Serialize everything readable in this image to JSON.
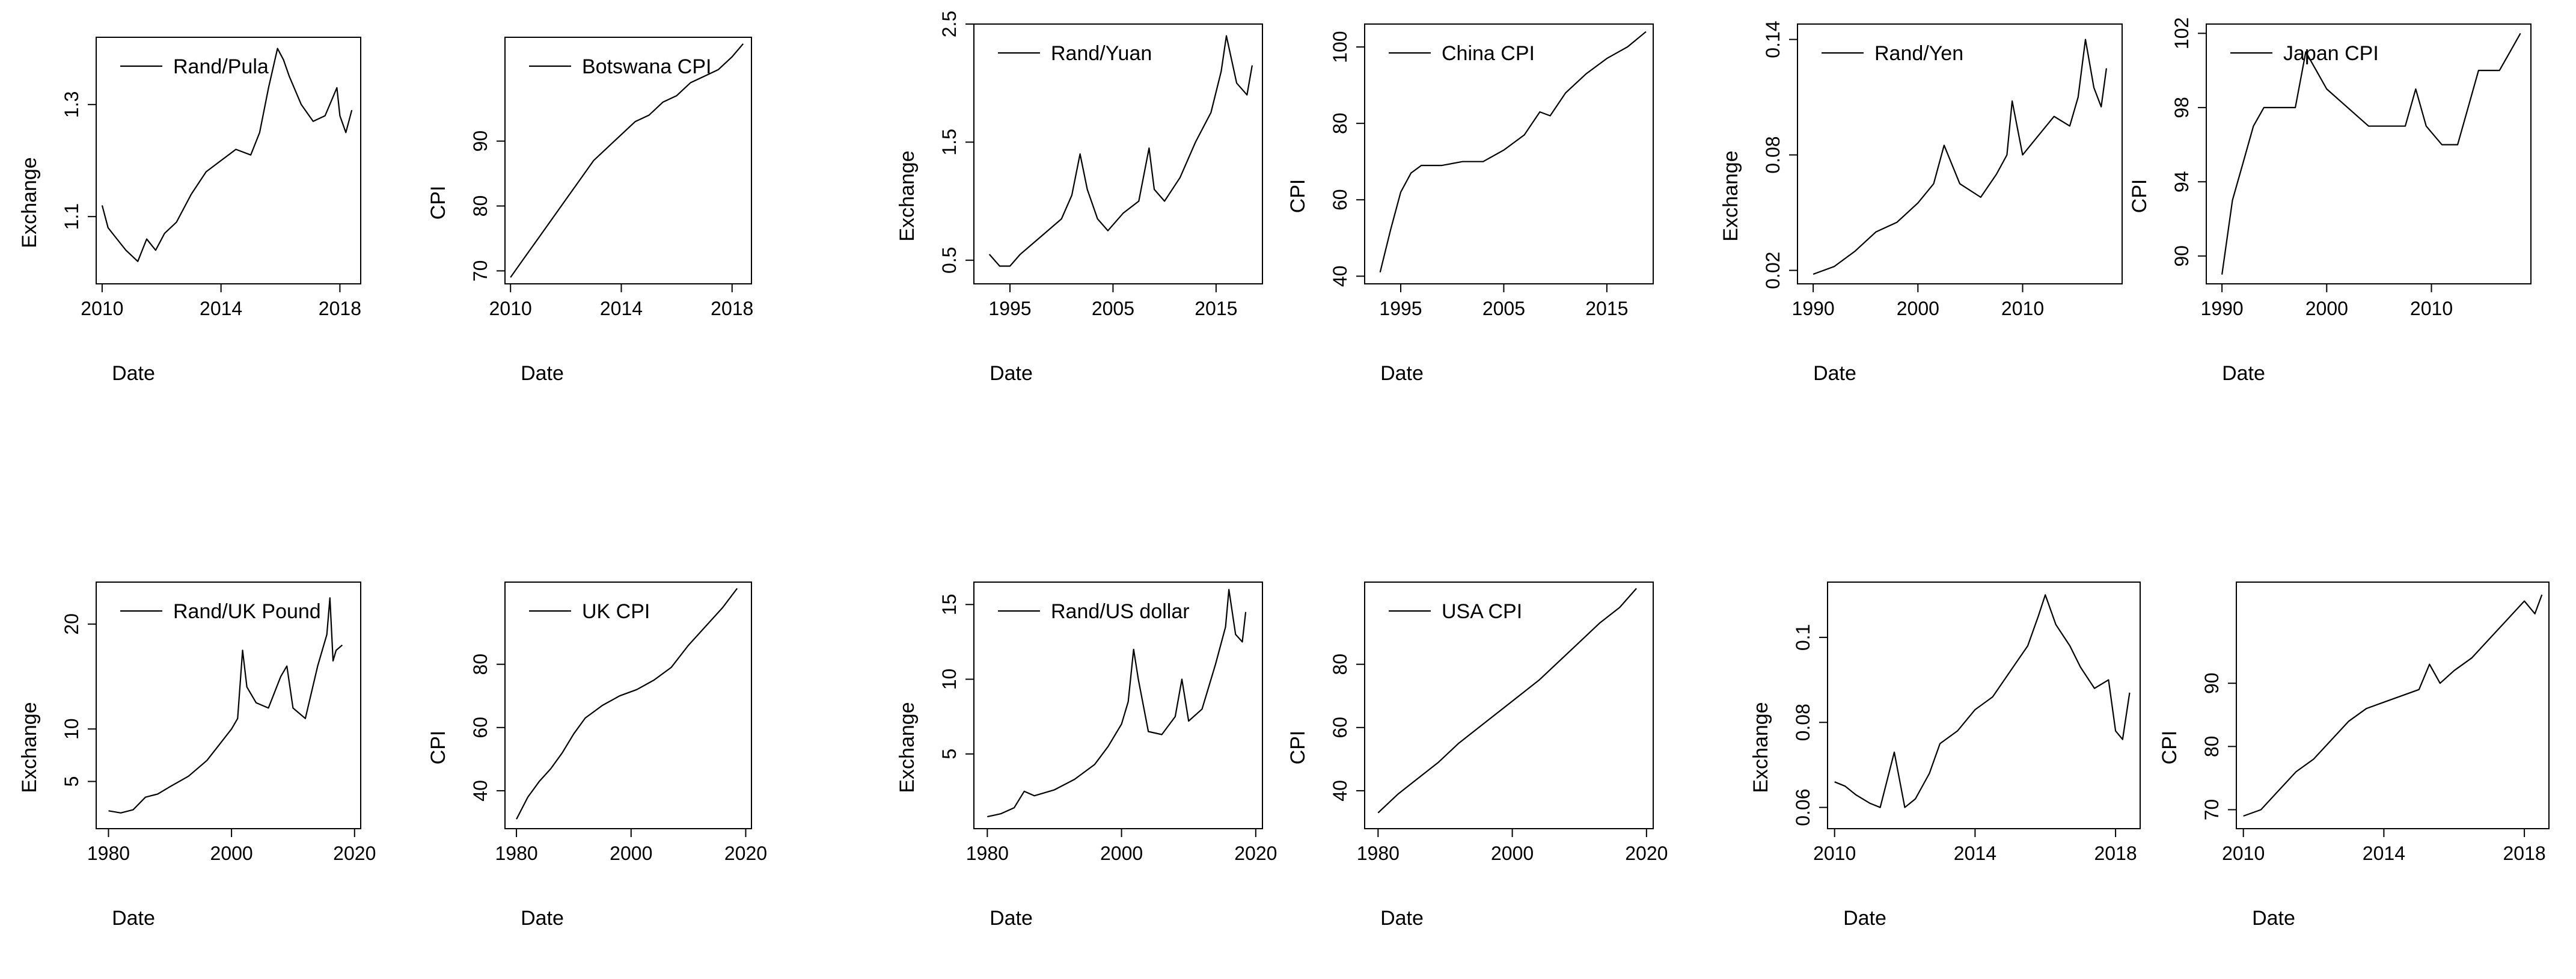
{
  "chart_data": [
    {
      "type": "line",
      "id": "rand-pula",
      "xlabel": "Date",
      "ylabel": "Exchange",
      "legend": "Rand/Pula",
      "legend_position": "top-left",
      "x_ticks": [
        2010,
        2014,
        2018
      ],
      "y_ticks": [
        1.1,
        1.3
      ],
      "xlim": [
        2009.8,
        2018.7
      ],
      "ylim": [
        0.98,
        1.42
      ],
      "series": [
        {
          "name": "Rand/Pula",
          "x": [
            2010.0,
            2010.2,
            2010.5,
            2010.8,
            2011.2,
            2011.5,
            2011.8,
            2012.1,
            2012.5,
            2013.0,
            2013.5,
            2014.0,
            2014.5,
            2015.0,
            2015.3,
            2015.6,
            2015.9,
            2016.1,
            2016.3,
            2016.7,
            2017.1,
            2017.5,
            2017.9,
            2018.0,
            2018.2,
            2018.4
          ],
          "values": [
            1.12,
            1.08,
            1.06,
            1.04,
            1.02,
            1.06,
            1.04,
            1.07,
            1.09,
            1.14,
            1.18,
            1.2,
            1.22,
            1.21,
            1.25,
            1.33,
            1.4,
            1.38,
            1.35,
            1.3,
            1.27,
            1.28,
            1.33,
            1.28,
            1.25,
            1.29
          ]
        }
      ]
    },
    {
      "type": "line",
      "id": "botswana-cpi",
      "xlabel": "Date",
      "ylabel": "CPI",
      "legend": "Botswana CPI",
      "legend_position": "top-left",
      "x_ticks": [
        2010,
        2014,
        2018
      ],
      "y_ticks": [
        70,
        80,
        90
      ],
      "xlim": [
        2009.8,
        2018.7
      ],
      "ylim": [
        68,
        106
      ],
      "series": [
        {
          "name": "Botswana CPI",
          "x": [
            2010.0,
            2010.5,
            2011.0,
            2011.5,
            2012.0,
            2012.5,
            2013.0,
            2013.5,
            2014.0,
            2014.5,
            2015.0,
            2015.5,
            2016.0,
            2016.5,
            2017.0,
            2017.5,
            2018.0,
            2018.4
          ],
          "values": [
            69,
            72,
            75,
            78,
            81,
            84,
            87,
            89,
            91,
            93,
            94,
            96,
            97,
            99,
            100,
            101,
            103,
            105
          ]
        }
      ]
    },
    {
      "type": "line",
      "id": "rand-yuan",
      "xlabel": "Date",
      "ylabel": "Exchange",
      "legend": "Rand/Yuan",
      "legend_position": "top-left",
      "x_ticks": [
        1995,
        2005,
        2015
      ],
      "y_ticks": [
        0.5,
        1.5,
        2.5
      ],
      "xlim": [
        1991.5,
        2019.5
      ],
      "ylim": [
        0.3,
        2.5
      ],
      "series": [
        {
          "name": "Rand/Yuan",
          "x": [
            1993.0,
            1994.0,
            1995.0,
            1996.0,
            1998.0,
            2000.0,
            2001.0,
            2001.8,
            2002.5,
            2003.5,
            2004.5,
            2006.0,
            2007.5,
            2008.5,
            2009.0,
            2010.0,
            2011.5,
            2013.0,
            2014.5,
            2015.5,
            2016.0,
            2017.0,
            2018.0,
            2018.5
          ],
          "values": [
            0.55,
            0.45,
            0.45,
            0.55,
            0.7,
            0.85,
            1.05,
            1.4,
            1.1,
            0.85,
            0.75,
            0.9,
            1.0,
            1.45,
            1.1,
            1.0,
            1.2,
            1.5,
            1.75,
            2.1,
            2.4,
            2.0,
            1.9,
            2.15
          ]
        }
      ]
    },
    {
      "type": "line",
      "id": "china-cpi",
      "xlabel": "Date",
      "ylabel": "CPI",
      "legend": "China CPI",
      "legend_position": "top-left",
      "x_ticks": [
        1995,
        2005,
        2015
      ],
      "y_ticks": [
        40,
        60,
        80,
        100
      ],
      "xlim": [
        1991.5,
        2019.5
      ],
      "ylim": [
        38,
        106
      ],
      "series": [
        {
          "name": "China CPI",
          "x": [
            1993.0,
            1994.0,
            1995.0,
            1996.0,
            1997.0,
            1999.0,
            2001.0,
            2003.0,
            2005.0,
            2007.0,
            2008.5,
            2009.5,
            2011.0,
            2013.0,
            2015.0,
            2017.0,
            2018.8
          ],
          "values": [
            41,
            52,
            62,
            67,
            69,
            69,
            70,
            70,
            73,
            77,
            83,
            82,
            88,
            93,
            97,
            100,
            104
          ]
        }
      ]
    },
    {
      "type": "line",
      "id": "rand-yen",
      "xlabel": "Date",
      "ylabel": "Exchange",
      "legend": "Rand/Yen",
      "legend_position": "top-left",
      "x_ticks": [
        1990,
        2000,
        2010
      ],
      "y_ticks": [
        0.02,
        0.08,
        0.14
      ],
      "xlim": [
        1988.5,
        2019.5
      ],
      "ylim": [
        0.013,
        0.148
      ],
      "series": [
        {
          "name": "Rand/Yen",
          "x": [
            1990.0,
            1992.0,
            1994.0,
            1996.0,
            1998.0,
            2000.0,
            2001.5,
            2002.5,
            2004.0,
            2006.0,
            2007.5,
            2008.5,
            2009.0,
            2010.0,
            2011.5,
            2013.0,
            2014.5,
            2015.3,
            2016.0,
            2016.8,
            2017.5,
            2018.0
          ],
          "values": [
            0.018,
            0.022,
            0.03,
            0.04,
            0.045,
            0.055,
            0.065,
            0.085,
            0.065,
            0.058,
            0.07,
            0.08,
            0.108,
            0.08,
            0.09,
            0.1,
            0.095,
            0.11,
            0.14,
            0.115,
            0.105,
            0.125
          ]
        }
      ]
    },
    {
      "type": "line",
      "id": "japan-cpi",
      "xlabel": "Date",
      "ylabel": "CPI",
      "legend": "Japan CPI",
      "legend_position": "top-left",
      "x_ticks": [
        1990,
        2000,
        2010
      ],
      "y_ticks": [
        90,
        94,
        98,
        102
      ],
      "xlim": [
        1988.5,
        2019.5
      ],
      "ylim": [
        88.5,
        102.5
      ],
      "series": [
        {
          "name": "Japan CPI",
          "x": [
            1990.0,
            1991.0,
            1992.0,
            1993.0,
            1994.0,
            1995.0,
            1997.0,
            1998.0,
            1999.0,
            2000.0,
            2002.0,
            2004.0,
            2006.0,
            2007.5,
            2008.5,
            2009.5,
            2011.0,
            2012.5,
            2013.5,
            2014.5,
            2015.5,
            2016.5,
            2017.5,
            2018.5
          ],
          "values": [
            89,
            93,
            95,
            97,
            98,
            98,
            98,
            101,
            100,
            99,
            98,
            97,
            97,
            97,
            99,
            97,
            96,
            96,
            98,
            100,
            100,
            100,
            101,
            102
          ]
        }
      ]
    },
    {
      "type": "line",
      "id": "rand-uk-pound",
      "xlabel": "Date",
      "ylabel": "Exchange",
      "legend": "Rand/UK Pound",
      "legend_position": "top-left",
      "x_ticks": [
        1980,
        2000,
        2020
      ],
      "y_ticks": [
        5,
        10,
        20
      ],
      "xlim": [
        1978,
        2021
      ],
      "ylim": [
        0.5,
        24
      ],
      "series": [
        {
          "name": "Rand/UK Pound",
          "x": [
            1980.0,
            1982.0,
            1984.0,
            1986.0,
            1988.0,
            1990.0,
            1993.0,
            1996.0,
            1998.0,
            2000.0,
            2001.0,
            2001.8,
            2002.5,
            2004.0,
            2006.0,
            2008.0,
            2009.0,
            2010.0,
            2012.0,
            2014.0,
            2015.5,
            2016.0,
            2016.5,
            2017.0,
            2018.0
          ],
          "values": [
            2.2,
            2.0,
            2.3,
            3.5,
            3.8,
            4.5,
            5.5,
            7.0,
            8.5,
            10.0,
            11.0,
            17.5,
            14.0,
            12.5,
            12.0,
            15.0,
            16.0,
            12.0,
            11.0,
            16.0,
            19.0,
            22.5,
            16.5,
            17.5,
            18.0
          ]
        }
      ]
    },
    {
      "type": "line",
      "id": "uk-cpi",
      "xlabel": "Date",
      "ylabel": "CPI",
      "legend": "UK CPI",
      "legend_position": "top-left",
      "x_ticks": [
        1980,
        2000,
        2020
      ],
      "y_ticks": [
        40,
        60,
        80
      ],
      "xlim": [
        1978,
        2021
      ],
      "ylim": [
        28,
        106
      ],
      "series": [
        {
          "name": "UK CPI",
          "x": [
            1980.0,
            1982.0,
            1984.0,
            1986.0,
            1988.0,
            1990.0,
            1992.0,
            1995.0,
            1998.0,
            2001.0,
            2004.0,
            2007.0,
            2010.0,
            2013.0,
            2016.0,
            2018.5
          ],
          "values": [
            31,
            38,
            43,
            47,
            52,
            58,
            63,
            67,
            70,
            72,
            75,
            79,
            86,
            92,
            98,
            104
          ]
        }
      ]
    },
    {
      "type": "line",
      "id": "rand-us-dollar",
      "xlabel": "Date",
      "ylabel": "Exchange",
      "legend": "Rand/US dollar",
      "legend_position": "top-left",
      "x_ticks": [
        1980,
        2000,
        2020
      ],
      "y_ticks": [
        5,
        10,
        15
      ],
      "xlim": [
        1978,
        2021
      ],
      "ylim": [
        0,
        16.5
      ],
      "series": [
        {
          "name": "Rand/US dollar",
          "x": [
            1980.0,
            1982.0,
            1984.0,
            1985.5,
            1987.0,
            1990.0,
            1993.0,
            1996.0,
            1998.0,
            2000.0,
            2001.0,
            2001.8,
            2002.5,
            2004.0,
            2006.0,
            2008.0,
            2009.0,
            2010.0,
            2012.0,
            2014.0,
            2015.5,
            2016.0,
            2017.0,
            2018.0,
            2018.5
          ],
          "values": [
            0.8,
            1.0,
            1.4,
            2.5,
            2.2,
            2.6,
            3.3,
            4.3,
            5.5,
            7.0,
            8.5,
            12.0,
            10.0,
            6.5,
            6.3,
            7.5,
            10.0,
            7.2,
            8.0,
            11.0,
            13.5,
            16.0,
            13.0,
            12.5,
            14.5
          ]
        }
      ]
    },
    {
      "type": "line",
      "id": "usa-cpi",
      "xlabel": "Date",
      "ylabel": "CPI",
      "legend": "USA CPI",
      "legend_position": "top-left",
      "x_ticks": [
        1980,
        2000,
        2020
      ],
      "y_ticks": [
        40,
        60,
        80
      ],
      "xlim": [
        1978,
        2021
      ],
      "ylim": [
        28,
        106
      ],
      "series": [
        {
          "name": "USA CPI",
          "x": [
            1980.0,
            1983.0,
            1986.0,
            1989.0,
            1992.0,
            1995.0,
            1998.0,
            2001.0,
            2004.0,
            2007.0,
            2010.0,
            2013.0,
            2016.0,
            2018.5
          ],
          "values": [
            33,
            39,
            44,
            49,
            55,
            60,
            65,
            70,
            75,
            81,
            87,
            93,
            98,
            104
          ]
        }
      ]
    },
    {
      "type": "line",
      "id": "exchange-2010-2018",
      "xlabel": "Date",
      "ylabel": "Exchange",
      "legend": null,
      "x_ticks": [
        2010,
        2014,
        2018
      ],
      "y_ticks": [
        0.06,
        0.08,
        0.1
      ],
      "xlim": [
        2009.8,
        2018.7
      ],
      "ylim": [
        0.055,
        0.113
      ],
      "series": [
        {
          "name": "Exchange",
          "x": [
            2010.0,
            2010.3,
            2010.6,
            2011.0,
            2011.3,
            2011.7,
            2012.0,
            2012.3,
            2012.7,
            2013.0,
            2013.5,
            2014.0,
            2014.5,
            2015.0,
            2015.5,
            2015.8,
            2016.0,
            2016.3,
            2016.7,
            2017.0,
            2017.4,
            2017.8,
            2018.0,
            2018.2,
            2018.4
          ],
          "values": [
            0.066,
            0.065,
            0.063,
            0.061,
            0.06,
            0.073,
            0.06,
            0.062,
            0.068,
            0.075,
            0.078,
            0.083,
            0.086,
            0.092,
            0.098,
            0.105,
            0.11,
            0.103,
            0.098,
            0.093,
            0.088,
            0.09,
            0.078,
            0.076,
            0.087
          ]
        }
      ]
    },
    {
      "type": "line",
      "id": "cpi-2010-2018",
      "xlabel": "Date",
      "ylabel": "CPI",
      "legend": null,
      "x_ticks": [
        2010,
        2014,
        2018
      ],
      "y_ticks": [
        70,
        80,
        90
      ],
      "xlim": [
        2009.8,
        2018.7
      ],
      "ylim": [
        67,
        106
      ],
      "series": [
        {
          "name": "CPI",
          "x": [
            2010.0,
            2010.5,
            2011.0,
            2011.5,
            2012.0,
            2012.5,
            2013.0,
            2013.5,
            2014.0,
            2014.5,
            2015.0,
            2015.3,
            2015.6,
            2016.0,
            2016.5,
            2017.0,
            2017.5,
            2018.0,
            2018.3,
            2018.5
          ],
          "values": [
            69,
            70,
            73,
            76,
            78,
            81,
            84,
            86,
            87,
            88,
            89,
            93,
            90,
            92,
            94,
            97,
            100,
            103,
            101,
            104
          ]
        }
      ]
    }
  ]
}
